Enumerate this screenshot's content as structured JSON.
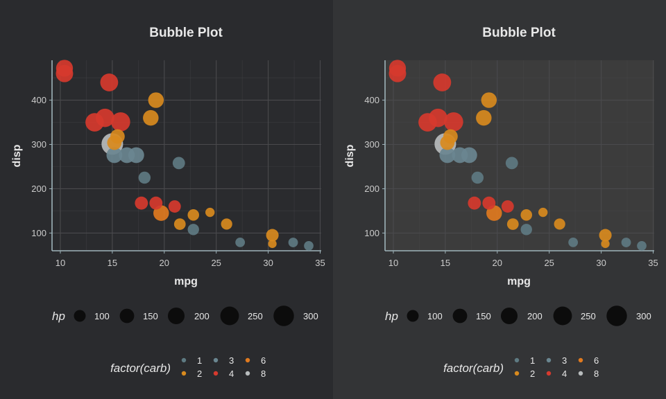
{
  "colors": {
    "panel_bg_left": "#2a2b2e",
    "panel_bg_right": "#333436",
    "plot_bg_right": "#3c3c3c",
    "grid": "#4a4a4d",
    "axis_line": "#9fb4bb",
    "text": "#e8e8e8",
    "tick_text": "#cccccc",
    "size_key": "#0c0c0c"
  },
  "chart_data": [
    {
      "type": "scatter",
      "title": "Bubble Plot",
      "xlabel": "mpg",
      "ylabel": "disp",
      "xlim": [
        9.2,
        35.1
      ],
      "ylim": [
        60,
        490
      ],
      "x_ticks": [
        10,
        15,
        20,
        25,
        30,
        35
      ],
      "y_ticks": [
        100,
        200,
        300,
        400
      ],
      "x_tick_labels": [
        "10",
        "15",
        "20",
        "25",
        "30",
        "35"
      ],
      "y_tick_labels": [
        "100",
        "200",
        "300",
        "400"
      ],
      "grid": true,
      "size_legend": {
        "title": "hp",
        "values": [
          100,
          150,
          200,
          250,
          300
        ],
        "labels": [
          "100",
          "150",
          "200",
          "250",
          "300"
        ]
      },
      "color_legend": {
        "title": "factor(carb)",
        "entries": [
          {
            "label": "1",
            "color": "#5e7a82"
          },
          {
            "label": "3",
            "color": "#6a8690"
          },
          {
            "label": "6",
            "color": "#e07a1f"
          },
          {
            "label": "2",
            "color": "#d88a1e"
          },
          {
            "label": "4",
            "color": "#d63a2e"
          },
          {
            "label": "8",
            "color": "#b8bcbd"
          }
        ]
      },
      "points": [
        {
          "mpg": 10.4,
          "disp": 472,
          "hp": 205,
          "color": "#d63a2e"
        },
        {
          "mpg": 10.4,
          "disp": 460,
          "hp": 215,
          "color": "#d63a2e"
        },
        {
          "mpg": 14.7,
          "disp": 440,
          "hp": 230,
          "color": "#d63a2e"
        },
        {
          "mpg": 19.2,
          "disp": 400,
          "hp": 175,
          "color": "#d88a1e"
        },
        {
          "mpg": 18.7,
          "disp": 360,
          "hp": 175,
          "color": "#d88a1e"
        },
        {
          "mpg": 14.3,
          "disp": 360,
          "hp": 245,
          "color": "#d63a2e"
        },
        {
          "mpg": 13.3,
          "disp": 350,
          "hp": 245,
          "color": "#d63a2e"
        },
        {
          "mpg": 15.8,
          "disp": 351,
          "hp": 264,
          "color": "#d63a2e"
        },
        {
          "mpg": 15.5,
          "disp": 318,
          "hp": 150,
          "color": "#d88a1e"
        },
        {
          "mpg": 15.2,
          "disp": 304,
          "hp": 150,
          "color": "#d88a1e"
        },
        {
          "mpg": 15.0,
          "disp": 301,
          "hp": 335,
          "color": "#b8bcbd"
        },
        {
          "mpg": 15.2,
          "disp": 275.8,
          "hp": 180,
          "color": "#6a8690"
        },
        {
          "mpg": 16.4,
          "disp": 275.8,
          "hp": 180,
          "color": "#6a8690"
        },
        {
          "mpg": 17.3,
          "disp": 275.8,
          "hp": 180,
          "color": "#6a8690"
        },
        {
          "mpg": 21.4,
          "disp": 258,
          "hp": 110,
          "color": "#5e7a82"
        },
        {
          "mpg": 18.1,
          "disp": 225,
          "hp": 105,
          "color": "#5e7a82"
        },
        {
          "mpg": 17.8,
          "disp": 167.6,
          "hp": 123,
          "color": "#d63a2e"
        },
        {
          "mpg": 19.2,
          "disp": 167.6,
          "hp": 123,
          "color": "#d63a2e"
        },
        {
          "mpg": 21.0,
          "disp": 160,
          "hp": 110,
          "color": "#d63a2e"
        },
        {
          "mpg": 19.7,
          "disp": 145,
          "hp": 175,
          "color": "#e07a1f"
        },
        {
          "mpg": 24.4,
          "disp": 146.7,
          "hp": 62,
          "color": "#d88a1e"
        },
        {
          "mpg": 22.8,
          "disp": 140.8,
          "hp": 95,
          "color": "#d88a1e"
        },
        {
          "mpg": 21.5,
          "disp": 120.1,
          "hp": 97,
          "color": "#d88a1e"
        },
        {
          "mpg": 26.0,
          "disp": 120.3,
          "hp": 91,
          "color": "#d88a1e"
        },
        {
          "mpg": 22.8,
          "disp": 108,
          "hp": 93,
          "color": "#5e7a82"
        },
        {
          "mpg": 30.4,
          "disp": 95.1,
          "hp": 113,
          "color": "#d88a1e"
        },
        {
          "mpg": 27.3,
          "disp": 79,
          "hp": 66,
          "color": "#5e7a82"
        },
        {
          "mpg": 32.4,
          "disp": 78.7,
          "hp": 66,
          "color": "#5e7a82"
        },
        {
          "mpg": 30.4,
          "disp": 75.7,
          "hp": 52,
          "color": "#d88a1e"
        },
        {
          "mpg": 33.9,
          "disp": 71.1,
          "hp": 65,
          "color": "#5e7a82"
        }
      ]
    },
    {
      "type": "scatter",
      "title": "Bubble Plot",
      "xlabel": "mpg",
      "ylabel": "disp",
      "xlim": [
        9.2,
        35.1
      ],
      "ylim": [
        60,
        490
      ],
      "x_ticks": [
        10,
        15,
        20,
        25,
        30,
        35
      ],
      "y_ticks": [
        100,
        200,
        300,
        400
      ],
      "x_tick_labels": [
        "10",
        "15",
        "20",
        "25",
        "30",
        "35"
      ],
      "y_tick_labels": [
        "100",
        "200",
        "300",
        "400"
      ],
      "grid": true,
      "size_legend": {
        "title": "hp",
        "values": [
          100,
          150,
          200,
          250,
          300
        ],
        "labels": [
          "100",
          "150",
          "200",
          "250",
          "300"
        ]
      },
      "color_legend": {
        "title": "factor(carb)",
        "entries": [
          {
            "label": "1",
            "color": "#5e7a82"
          },
          {
            "label": "3",
            "color": "#6a8690"
          },
          {
            "label": "6",
            "color": "#e07a1f"
          },
          {
            "label": "2",
            "color": "#d88a1e"
          },
          {
            "label": "4",
            "color": "#d63a2e"
          },
          {
            "label": "8",
            "color": "#b8bcbd"
          }
        ]
      },
      "points": [
        {
          "mpg": 10.4,
          "disp": 472,
          "hp": 205,
          "color": "#d63a2e"
        },
        {
          "mpg": 10.4,
          "disp": 460,
          "hp": 215,
          "color": "#d63a2e"
        },
        {
          "mpg": 14.7,
          "disp": 440,
          "hp": 230,
          "color": "#d63a2e"
        },
        {
          "mpg": 19.2,
          "disp": 400,
          "hp": 175,
          "color": "#d88a1e"
        },
        {
          "mpg": 18.7,
          "disp": 360,
          "hp": 175,
          "color": "#d88a1e"
        },
        {
          "mpg": 14.3,
          "disp": 360,
          "hp": 245,
          "color": "#d63a2e"
        },
        {
          "mpg": 13.3,
          "disp": 350,
          "hp": 245,
          "color": "#d63a2e"
        },
        {
          "mpg": 15.8,
          "disp": 351,
          "hp": 264,
          "color": "#d63a2e"
        },
        {
          "mpg": 15.5,
          "disp": 318,
          "hp": 150,
          "color": "#d88a1e"
        },
        {
          "mpg": 15.2,
          "disp": 304,
          "hp": 150,
          "color": "#d88a1e"
        },
        {
          "mpg": 15.0,
          "disp": 301,
          "hp": 335,
          "color": "#b8bcbd"
        },
        {
          "mpg": 15.2,
          "disp": 275.8,
          "hp": 180,
          "color": "#6a8690"
        },
        {
          "mpg": 16.4,
          "disp": 275.8,
          "hp": 180,
          "color": "#6a8690"
        },
        {
          "mpg": 17.3,
          "disp": 275.8,
          "hp": 180,
          "color": "#6a8690"
        },
        {
          "mpg": 21.4,
          "disp": 258,
          "hp": 110,
          "color": "#5e7a82"
        },
        {
          "mpg": 18.1,
          "disp": 225,
          "hp": 105,
          "color": "#5e7a82"
        },
        {
          "mpg": 17.8,
          "disp": 167.6,
          "hp": 123,
          "color": "#d63a2e"
        },
        {
          "mpg": 19.2,
          "disp": 167.6,
          "hp": 123,
          "color": "#d63a2e"
        },
        {
          "mpg": 21.0,
          "disp": 160,
          "hp": 110,
          "color": "#d63a2e"
        },
        {
          "mpg": 19.7,
          "disp": 145,
          "hp": 175,
          "color": "#e07a1f"
        },
        {
          "mpg": 24.4,
          "disp": 146.7,
          "hp": 62,
          "color": "#d88a1e"
        },
        {
          "mpg": 22.8,
          "disp": 140.8,
          "hp": 95,
          "color": "#d88a1e"
        },
        {
          "mpg": 21.5,
          "disp": 120.1,
          "hp": 97,
          "color": "#d88a1e"
        },
        {
          "mpg": 26.0,
          "disp": 120.3,
          "hp": 91,
          "color": "#d88a1e"
        },
        {
          "mpg": 22.8,
          "disp": 108,
          "hp": 93,
          "color": "#5e7a82"
        },
        {
          "mpg": 30.4,
          "disp": 95.1,
          "hp": 113,
          "color": "#d88a1e"
        },
        {
          "mpg": 27.3,
          "disp": 79,
          "hp": 66,
          "color": "#5e7a82"
        },
        {
          "mpg": 32.4,
          "disp": 78.7,
          "hp": 66,
          "color": "#5e7a82"
        },
        {
          "mpg": 30.4,
          "disp": 75.7,
          "hp": 52,
          "color": "#d88a1e"
        },
        {
          "mpg": 33.9,
          "disp": 71.1,
          "hp": 65,
          "color": "#5e7a82"
        }
      ]
    }
  ]
}
